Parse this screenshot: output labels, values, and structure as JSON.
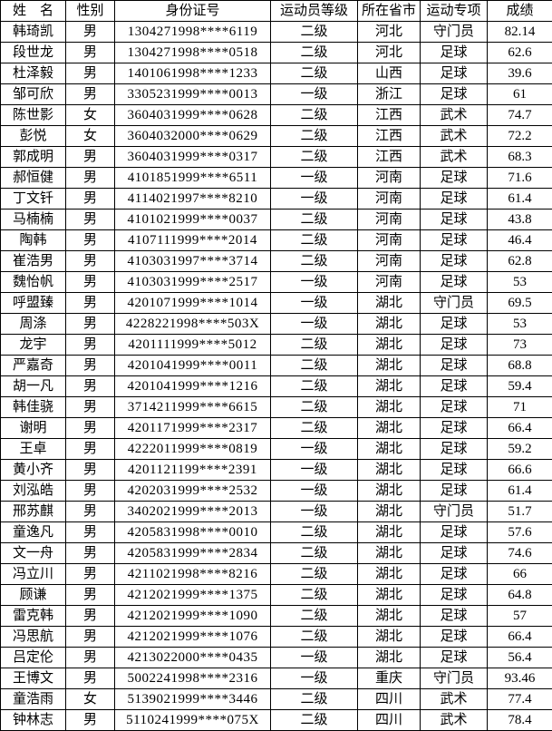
{
  "colors": {
    "background": "#ffffff",
    "border": "#000000",
    "text": "#000000"
  },
  "table": {
    "headers": [
      "姓　名",
      "性别",
      "身份证号",
      "运动员等级",
      "所在省市",
      "运动专项",
      "成绩"
    ],
    "column_keys": [
      "name",
      "gender",
      "id-number",
      "athlete-level",
      "province",
      "specialty",
      "score"
    ],
    "rows": [
      [
        "韩琦凯",
        "男",
        "1304271998****6119",
        "二级",
        "河北",
        "守门员",
        "82.14"
      ],
      [
        "段世龙",
        "男",
        "1304271998****0518",
        "二级",
        "河北",
        "足球",
        "62.6"
      ],
      [
        "杜泽毅",
        "男",
        "1401061998****1233",
        "二级",
        "山西",
        "足球",
        "39.6"
      ],
      [
        "邹可欣",
        "男",
        "3305231999****0013",
        "一级",
        "浙江",
        "足球",
        "61"
      ],
      [
        "陈世影",
        "女",
        "3604031999****0628",
        "二级",
        "江西",
        "武术",
        "74.7"
      ],
      [
        "彭悦",
        "女",
        "3604032000****0629",
        "二级",
        "江西",
        "武术",
        "72.2"
      ],
      [
        "郭成明",
        "男",
        "3604031999****0317",
        "二级",
        "江西",
        "武术",
        "68.3"
      ],
      [
        "郝恒健",
        "男",
        "4101851999****6511",
        "一级",
        "河南",
        "足球",
        "71.6"
      ],
      [
        "丁文钎",
        "男",
        "4114021997****8210",
        "一级",
        "河南",
        "足球",
        "61.4"
      ],
      [
        "马楠楠",
        "男",
        "4101021999****0037",
        "二级",
        "河南",
        "足球",
        "43.8"
      ],
      [
        "陶韩",
        "男",
        "4107111999****2014",
        "二级",
        "河南",
        "足球",
        "46.4"
      ],
      [
        "崔浩男",
        "男",
        "4103031997****3714",
        "二级",
        "河南",
        "足球",
        "62.8"
      ],
      [
        "魏怡帆",
        "男",
        "4103031999****2517",
        "一级",
        "河南",
        "足球",
        "53"
      ],
      [
        "呼盟臻",
        "男",
        "4201071999****1014",
        "一级",
        "湖北",
        "守门员",
        "69.5"
      ],
      [
        "周涤",
        "男",
        "4228221998****503X",
        "一级",
        "湖北",
        "足球",
        "53"
      ],
      [
        "龙宇",
        "男",
        "4201111999****5012",
        "二级",
        "湖北",
        "足球",
        "73"
      ],
      [
        "严嘉奇",
        "男",
        "4201041999****0011",
        "二级",
        "湖北",
        "足球",
        "68.8"
      ],
      [
        "胡一凡",
        "男",
        "4201041999****1216",
        "二级",
        "湖北",
        "足球",
        "59.4"
      ],
      [
        "韩佳骁",
        "男",
        "3714211999****6615",
        "二级",
        "湖北",
        "足球",
        "71"
      ],
      [
        "谢明",
        "男",
        "4201171999****2317",
        "二级",
        "湖北",
        "足球",
        "66.4"
      ],
      [
        "王卓",
        "男",
        "4222011999****0819",
        "一级",
        "湖北",
        "足球",
        "59.2"
      ],
      [
        "黄小齐",
        "男",
        "4201121199****2391",
        "一级",
        "湖北",
        "足球",
        "66.6"
      ],
      [
        "刘泓皓",
        "男",
        "4202031999****2532",
        "一级",
        "湖北",
        "足球",
        "61.4"
      ],
      [
        "邢苏麒",
        "男",
        "3402021999****2013",
        "一级",
        "湖北",
        "守门员",
        "51.7"
      ],
      [
        "童逸凡",
        "男",
        "4205831998****0010",
        "二级",
        "湖北",
        "足球",
        "57.6"
      ],
      [
        "文一舟",
        "男",
        "4205831999****2834",
        "二级",
        "湖北",
        "足球",
        "74.6"
      ],
      [
        "冯立川",
        "男",
        "4211021998****8216",
        "二级",
        "湖北",
        "足球",
        "66"
      ],
      [
        "顾谦",
        "男",
        "4212021999****1375",
        "二级",
        "湖北",
        "足球",
        "64.8"
      ],
      [
        "雷克韩",
        "男",
        "4212021999****1090",
        "二级",
        "湖北",
        "足球",
        "57"
      ],
      [
        "冯思航",
        "男",
        "4212021999****1076",
        "二级",
        "湖北",
        "足球",
        "66.4"
      ],
      [
        "吕定伦",
        "男",
        "4213022000****0435",
        "一级",
        "湖北",
        "足球",
        "56.4"
      ],
      [
        "王博文",
        "男",
        "5002241998****2316",
        "一级",
        "重庆",
        "守门员",
        "93.46"
      ],
      [
        "童浩雨",
        "女",
        "5139021999****3446",
        "二级",
        "四川",
        "武术",
        "77.4"
      ],
      [
        "钟林志",
        "男",
        "5110241999****075X",
        "二级",
        "四川",
        "武术",
        "78.4"
      ]
    ]
  }
}
